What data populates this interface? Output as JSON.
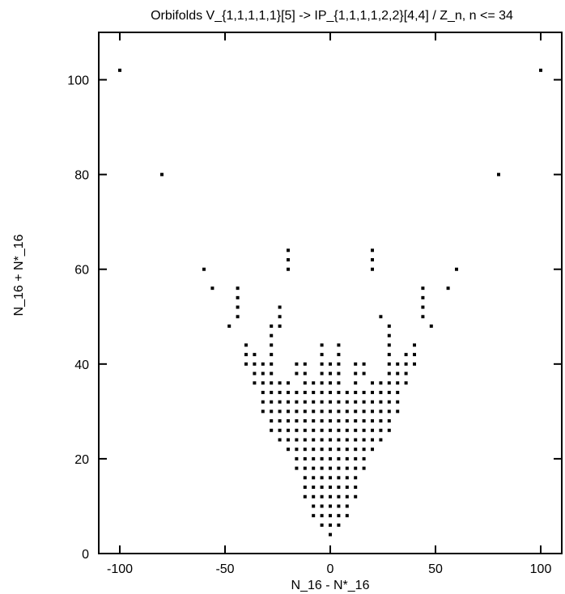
{
  "chart_data": {
    "type": "scatter",
    "title": "Orbifolds  V_{1,1,1,1,1}[5] -> IP_{1,1,1,1,2,2}[4,4] / Z_n,  n <= 34",
    "xlabel": "N_16 - N*_16",
    "ylabel": "N_16 + N*_16",
    "xlim": [
      -110,
      110
    ],
    "ylim": [
      0,
      110
    ],
    "xticks": [
      -100,
      -50,
      0,
      50,
      100
    ],
    "yticks": [
      0,
      20,
      40,
      60,
      80,
      100
    ],
    "xtick_labels": [
      "-100",
      "-50",
      "0",
      "50",
      "100"
    ],
    "ytick_labels": [
      "0",
      "20",
      "40",
      "60",
      "80",
      "100"
    ],
    "grid": false,
    "legend": "none",
    "marker_color": "#000000",
    "points": [
      [
        -100,
        102
      ],
      [
        100,
        102
      ],
      [
        -80,
        80
      ],
      [
        80,
        80
      ],
      [
        -60,
        60
      ],
      [
        60,
        60
      ],
      [
        -56,
        56
      ],
      [
        56,
        56
      ],
      [
        -48,
        48
      ],
      [
        48,
        48
      ],
      [
        -20,
        64
      ],
      [
        -20,
        62
      ],
      [
        -20,
        60
      ],
      [
        20,
        64
      ],
      [
        20,
        62
      ],
      [
        20,
        60
      ],
      [
        -44,
        56
      ],
      [
        -44,
        54
      ],
      [
        -44,
        52
      ],
      [
        -44,
        50
      ],
      [
        44,
        56
      ],
      [
        44,
        54
      ],
      [
        44,
        52
      ],
      [
        44,
        50
      ],
      [
        -24,
        52
      ],
      [
        -24,
        50
      ],
      [
        -24,
        48
      ],
      [
        24,
        50
      ],
      [
        -28,
        48
      ],
      [
        -28,
        46
      ],
      [
        -28,
        44
      ],
      [
        -28,
        42
      ],
      [
        -28,
        40
      ],
      [
        -28,
        38
      ],
      [
        -28,
        36
      ],
      [
        -28,
        34
      ],
      [
        -28,
        32
      ],
      [
        -28,
        30
      ],
      [
        -28,
        28
      ],
      [
        28,
        48
      ],
      [
        28,
        46
      ],
      [
        28,
        44
      ],
      [
        28,
        42
      ],
      [
        28,
        40
      ],
      [
        28,
        38
      ],
      [
        28,
        36
      ],
      [
        28,
        34
      ],
      [
        28,
        32
      ],
      [
        28,
        30
      ],
      [
        28,
        28
      ],
      [
        -40,
        44
      ],
      [
        -40,
        42
      ],
      [
        -40,
        40
      ],
      [
        40,
        44
      ],
      [
        40,
        42
      ],
      [
        40,
        40
      ],
      [
        -36,
        42
      ],
      [
        -36,
        40
      ],
      [
        -36,
        38
      ],
      [
        -36,
        36
      ],
      [
        36,
        42
      ],
      [
        36,
        40
      ],
      [
        36,
        38
      ],
      [
        36,
        36
      ],
      [
        -32,
        40
      ],
      [
        -32,
        38
      ],
      [
        -32,
        36
      ],
      [
        -32,
        34
      ],
      [
        -32,
        32
      ],
      [
        32,
        40
      ],
      [
        32,
        38
      ],
      [
        32,
        36
      ],
      [
        32,
        34
      ],
      [
        32,
        32
      ],
      [
        -4,
        44
      ],
      [
        -4,
        42
      ],
      [
        -4,
        40
      ],
      [
        -4,
        38
      ],
      [
        -4,
        36
      ],
      [
        -4,
        34
      ],
      [
        -4,
        32
      ],
      [
        -4,
        30
      ],
      [
        -4,
        28
      ],
      [
        -4,
        26
      ],
      [
        -4,
        24
      ],
      [
        -4,
        22
      ],
      [
        -4,
        20
      ],
      [
        -4,
        18
      ],
      [
        -4,
        16
      ],
      [
        -4,
        14
      ],
      [
        -4,
        12
      ],
      [
        -4,
        10
      ],
      [
        -4,
        8
      ],
      [
        -4,
        6
      ],
      [
        4,
        44
      ],
      [
        4,
        42
      ],
      [
        4,
        40
      ],
      [
        4,
        38
      ],
      [
        4,
        36
      ],
      [
        4,
        34
      ],
      [
        4,
        32
      ],
      [
        4,
        30
      ],
      [
        4,
        28
      ],
      [
        4,
        26
      ],
      [
        4,
        24
      ],
      [
        4,
        22
      ],
      [
        4,
        20
      ],
      [
        4,
        18
      ],
      [
        4,
        16
      ],
      [
        4,
        14
      ],
      [
        4,
        12
      ],
      [
        4,
        10
      ],
      [
        4,
        8
      ],
      [
        4,
        6
      ],
      [
        -16,
        40
      ],
      [
        -16,
        38
      ],
      [
        16,
        40
      ],
      [
        16,
        38
      ],
      [
        -12,
        40
      ],
      [
        -12,
        38
      ],
      [
        -12,
        36
      ],
      [
        -12,
        34
      ],
      [
        -12,
        32
      ],
      [
        -12,
        30
      ],
      [
        -12,
        28
      ],
      [
        -12,
        26
      ],
      [
        -12,
        24
      ],
      [
        -12,
        22
      ],
      [
        -12,
        20
      ],
      [
        -12,
        18
      ],
      [
        -12,
        16
      ],
      [
        -12,
        14
      ],
      [
        -12,
        12
      ],
      [
        12,
        40
      ],
      [
        12,
        38
      ],
      [
        12,
        36
      ],
      [
        12,
        34
      ],
      [
        12,
        32
      ],
      [
        12,
        30
      ],
      [
        12,
        28
      ],
      [
        12,
        26
      ],
      [
        12,
        24
      ],
      [
        12,
        22
      ],
      [
        12,
        20
      ],
      [
        12,
        18
      ],
      [
        12,
        16
      ],
      [
        12,
        14
      ],
      [
        12,
        12
      ],
      [
        -24,
        36
      ],
      [
        -24,
        34
      ],
      [
        -24,
        32
      ],
      [
        -24,
        30
      ],
      [
        -24,
        28
      ],
      [
        -24,
        26
      ],
      [
        -24,
        24
      ],
      [
        24,
        36
      ],
      [
        24,
        34
      ],
      [
        24,
        32
      ],
      [
        24,
        30
      ],
      [
        24,
        28
      ],
      [
        24,
        26
      ],
      [
        24,
        24
      ],
      [
        -20,
        36
      ],
      [
        -20,
        34
      ],
      [
        -20,
        32
      ],
      [
        -20,
        30
      ],
      [
        -20,
        28
      ],
      [
        -20,
        26
      ],
      [
        -20,
        24
      ],
      [
        -20,
        22
      ],
      [
        20,
        36
      ],
      [
        20,
        34
      ],
      [
        20,
        32
      ],
      [
        20,
        30
      ],
      [
        20,
        28
      ],
      [
        20,
        26
      ],
      [
        20,
        24
      ],
      [
        20,
        22
      ],
      [
        -16,
        34
      ],
      [
        -16,
        32
      ],
      [
        -16,
        30
      ],
      [
        -16,
        28
      ],
      [
        -16,
        26
      ],
      [
        -16,
        24
      ],
      [
        -16,
        22
      ],
      [
        -16,
        20
      ],
      [
        -16,
        18
      ],
      [
        16,
        34
      ],
      [
        16,
        32
      ],
      [
        16,
        30
      ],
      [
        16,
        28
      ],
      [
        16,
        26
      ],
      [
        16,
        24
      ],
      [
        16,
        22
      ],
      [
        16,
        20
      ],
      [
        16,
        18
      ],
      [
        -8,
        36
      ],
      [
        -8,
        34
      ],
      [
        -8,
        32
      ],
      [
        -8,
        30
      ],
      [
        -8,
        28
      ],
      [
        -8,
        26
      ],
      [
        -8,
        24
      ],
      [
        -8,
        22
      ],
      [
        -8,
        20
      ],
      [
        -8,
        18
      ],
      [
        -8,
        16
      ],
      [
        -8,
        14
      ],
      [
        -8,
        12
      ],
      [
        -8,
        10
      ],
      [
        -8,
        8
      ],
      [
        8,
        34
      ],
      [
        8,
        32
      ],
      [
        8,
        30
      ],
      [
        8,
        28
      ],
      [
        8,
        26
      ],
      [
        8,
        24
      ],
      [
        8,
        22
      ],
      [
        8,
        20
      ],
      [
        8,
        18
      ],
      [
        8,
        16
      ],
      [
        8,
        14
      ],
      [
        8,
        12
      ],
      [
        8,
        10
      ],
      [
        8,
        8
      ],
      [
        0,
        40
      ],
      [
        0,
        38
      ],
      [
        0,
        36
      ],
      [
        0,
        34
      ],
      [
        0,
        32
      ],
      [
        0,
        30
      ],
      [
        0,
        28
      ],
      [
        0,
        26
      ],
      [
        0,
        24
      ],
      [
        0,
        22
      ],
      [
        0,
        20
      ],
      [
        0,
        18
      ],
      [
        0,
        16
      ],
      [
        0,
        14
      ],
      [
        0,
        12
      ],
      [
        0,
        10
      ],
      [
        0,
        8
      ],
      [
        0,
        6
      ],
      [
        0,
        4
      ],
      [
        -32,
        30
      ],
      [
        32,
        30
      ],
      [
        -28,
        26
      ],
      [
        28,
        26
      ]
    ]
  }
}
